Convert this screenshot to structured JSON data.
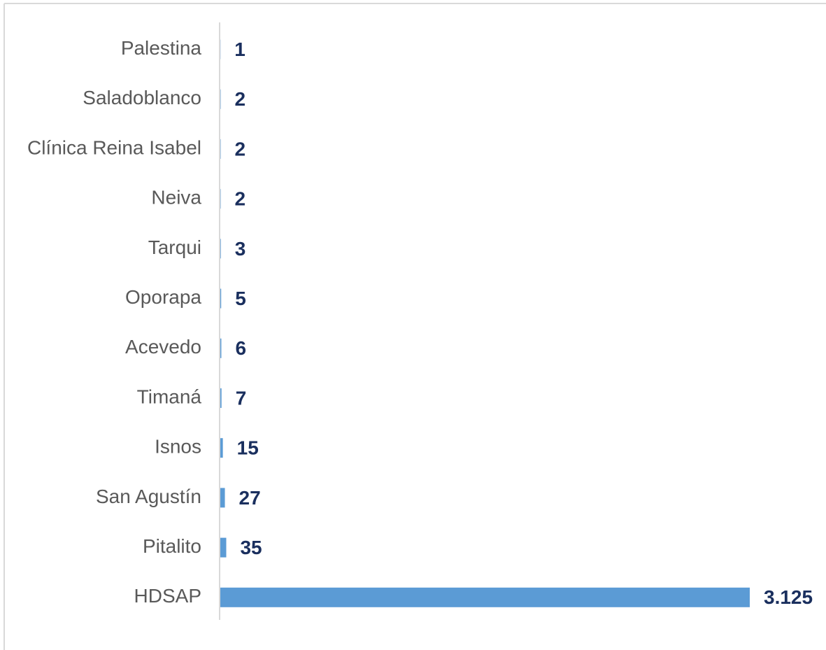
{
  "chart_data": {
    "type": "bar",
    "orientation": "horizontal",
    "categories": [
      "Palestina",
      "Saladoblanco",
      "Clínica Reina Isabel",
      "Neiva",
      "Tarqui",
      "Oporapa",
      "Acevedo",
      "Timaná",
      "Isnos",
      "San Agustín",
      "Pitalito",
      "HDSAP"
    ],
    "values": [
      1,
      2,
      2,
      2,
      3,
      5,
      6,
      7,
      15,
      27,
      35,
      3125
    ],
    "value_labels": [
      "1",
      "2",
      "2",
      "2",
      "3",
      "5",
      "6",
      "7",
      "15",
      "27",
      "35",
      "3.125"
    ],
    "color": "#5b9bd5",
    "xlim": [
      0,
      3125
    ]
  }
}
